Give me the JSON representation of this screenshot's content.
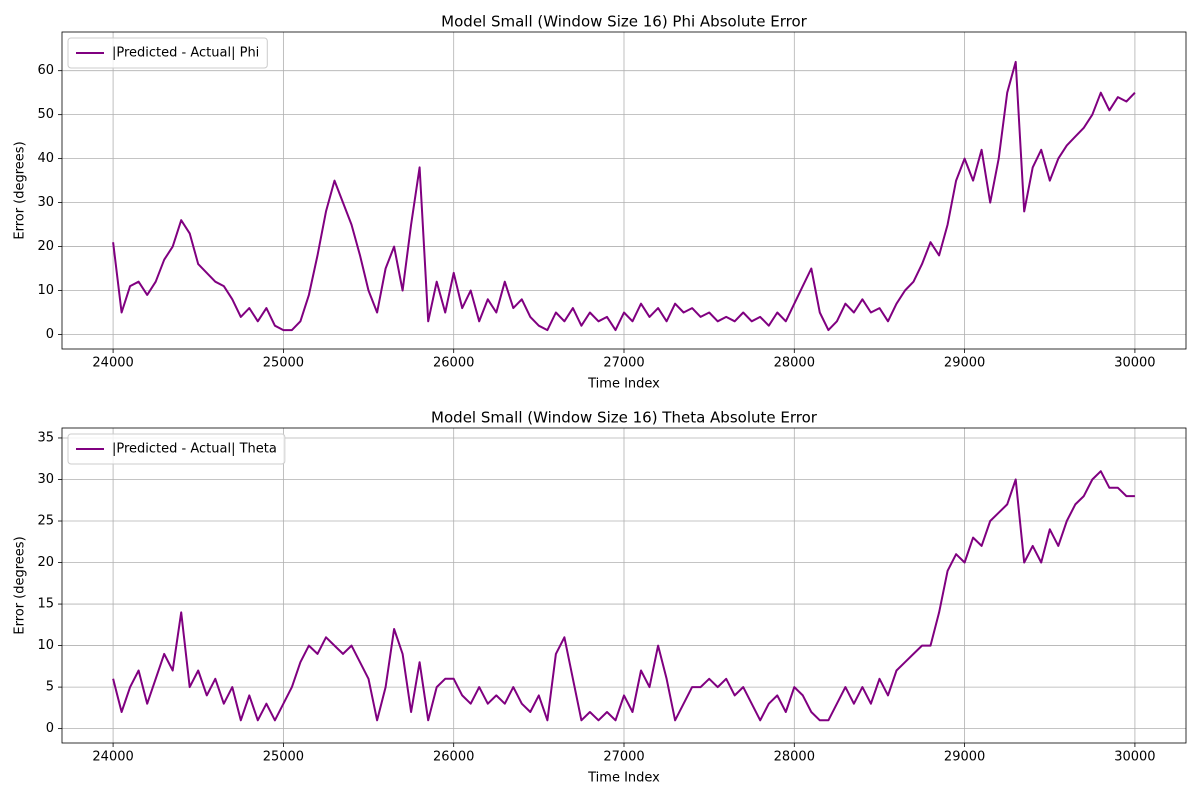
{
  "chart_data": [
    {
      "type": "line",
      "title": "Model Small (Window Size 16) Phi Absolute Error",
      "x_label": "Time Index",
      "y_label": "Error (degrees)",
      "x": [
        24000,
        24050,
        24100,
        24150,
        24200,
        24250,
        24300,
        24350,
        24400,
        24450,
        24500,
        24550,
        24600,
        24650,
        24700,
        24750,
        24800,
        24850,
        24900,
        24950,
        25000,
        25050,
        25100,
        25150,
        25200,
        25250,
        25300,
        25350,
        25400,
        25450,
        25500,
        25550,
        25600,
        25650,
        25700,
        25750,
        25800,
        25850,
        25900,
        25950,
        26000,
        26050,
        26100,
        26150,
        26200,
        26250,
        26300,
        26350,
        26400,
        26450,
        26500,
        26550,
        26600,
        26650,
        26700,
        26750,
        26800,
        26850,
        26900,
        26950,
        27000,
        27050,
        27100,
        27150,
        27200,
        27250,
        27300,
        27350,
        27400,
        27450,
        27500,
        27550,
        27600,
        27650,
        27700,
        27750,
        27800,
        27850,
        27900,
        27950,
        28000,
        28050,
        28100,
        28150,
        28200,
        28250,
        28300,
        28350,
        28400,
        28450,
        28500,
        28550,
        28600,
        28650,
        28700,
        28750,
        28800,
        28850,
        28900,
        28950,
        29000,
        29050,
        29100,
        29150,
        29200,
        29250,
        29300,
        29350,
        29400,
        29450,
        29500,
        29550,
        29600,
        29650,
        29700,
        29750,
        29800,
        29850,
        29900,
        29950,
        30000
      ],
      "series": [
        {
          "name": "|Predicted - Actual| Phi",
          "color": "#800080",
          "values": [
            21,
            5,
            11,
            12,
            9,
            12,
            17,
            20,
            26,
            23,
            16,
            14,
            12,
            11,
            8,
            4,
            6,
            3,
            6,
            2,
            1,
            1,
            3,
            9,
            18,
            28,
            35,
            30,
            25,
            18,
            10,
            5,
            15,
            20,
            10,
            25,
            38,
            3,
            12,
            5,
            14,
            6,
            10,
            3,
            8,
            5,
            12,
            6,
            8,
            4,
            2,
            1,
            5,
            3,
            6,
            2,
            5,
            3,
            4,
            1,
            5,
            3,
            7,
            4,
            6,
            3,
            7,
            5,
            6,
            4,
            5,
            3,
            4,
            3,
            5,
            3,
            4,
            2,
            5,
            3,
            7,
            11,
            15,
            5,
            1,
            3,
            7,
            5,
            8,
            5,
            6,
            3,
            7,
            10,
            12,
            16,
            21,
            18,
            25,
            35,
            40,
            35,
            42,
            30,
            40,
            55,
            62,
            28,
            38,
            42,
            35,
            40,
            43,
            45,
            47,
            50,
            55,
            51,
            54,
            53,
            55
          ]
        }
      ],
      "xlim": [
        23700,
        30300
      ],
      "xticks": [
        24000,
        25000,
        26000,
        27000,
        28000,
        29000,
        30000
      ],
      "ylim": [
        -3.3,
        68.8
      ],
      "yticks": [
        0,
        10,
        20,
        30,
        40,
        50,
        60
      ],
      "grid": true,
      "legend": "upper left"
    },
    {
      "type": "line",
      "title": "Model Small (Window Size 16) Theta Absolute Error",
      "x_label": "Time Index",
      "y_label": "Error (degrees)",
      "x": [
        24000,
        24050,
        24100,
        24150,
        24200,
        24250,
        24300,
        24350,
        24400,
        24450,
        24500,
        24550,
        24600,
        24650,
        24700,
        24750,
        24800,
        24850,
        24900,
        24950,
        25000,
        25050,
        25100,
        25150,
        25200,
        25250,
        25300,
        25350,
        25400,
        25450,
        25500,
        25550,
        25600,
        25650,
        25700,
        25750,
        25800,
        25850,
        25900,
        25950,
        26000,
        26050,
        26100,
        26150,
        26200,
        26250,
        26300,
        26350,
        26400,
        26450,
        26500,
        26550,
        26600,
        26650,
        26700,
        26750,
        26800,
        26850,
        26900,
        26950,
        27000,
        27050,
        27100,
        27150,
        27200,
        27250,
        27300,
        27350,
        27400,
        27450,
        27500,
        27550,
        27600,
        27650,
        27700,
        27750,
        27800,
        27850,
        27900,
        27950,
        28000,
        28050,
        28100,
        28150,
        28200,
        28250,
        28300,
        28350,
        28400,
        28450,
        28500,
        28550,
        28600,
        28650,
        28700,
        28750,
        28800,
        28850,
        28900,
        28950,
        29000,
        29050,
        29100,
        29150,
        29200,
        29250,
        29300,
        29350,
        29400,
        29450,
        29500,
        29550,
        29600,
        29650,
        29700,
        29750,
        29800,
        29850,
        29900,
        29950,
        30000
      ],
      "series": [
        {
          "name": "|Predicted - Actual| Theta",
          "color": "#800080",
          "values": [
            6,
            2,
            5,
            7,
            3,
            6,
            9,
            7,
            14,
            5,
            7,
            4,
            6,
            3,
            5,
            1,
            4,
            1,
            3,
            1,
            3,
            5,
            8,
            10,
            9,
            11,
            10,
            9,
            10,
            8,
            6,
            1,
            5,
            12,
            9,
            2,
            8,
            1,
            5,
            6,
            6,
            4,
            3,
            5,
            3,
            4,
            3,
            5,
            3,
            2,
            4,
            1,
            9,
            11,
            6,
            1,
            2,
            1,
            2,
            1,
            4,
            2,
            7,
            5,
            10,
            6,
            1,
            3,
            5,
            5,
            6,
            5,
            6,
            4,
            5,
            3,
            1,
            3,
            4,
            2,
            5,
            4,
            2,
            1,
            1,
            3,
            5,
            3,
            5,
            3,
            6,
            4,
            7,
            8,
            9,
            10,
            10,
            14,
            19,
            21,
            20,
            23,
            22,
            25,
            26,
            27,
            30,
            20,
            22,
            20,
            24,
            22,
            25,
            27,
            28,
            30,
            31,
            29,
            29,
            28,
            28
          ]
        }
      ],
      "xlim": [
        23700,
        30300
      ],
      "xticks": [
        24000,
        25000,
        26000,
        27000,
        28000,
        29000,
        30000
      ],
      "ylim": [
        -1.73,
        36.2
      ],
      "yticks": [
        0,
        5,
        10,
        15,
        20,
        25,
        30,
        35
      ],
      "grid": true,
      "legend": "upper left"
    }
  ]
}
